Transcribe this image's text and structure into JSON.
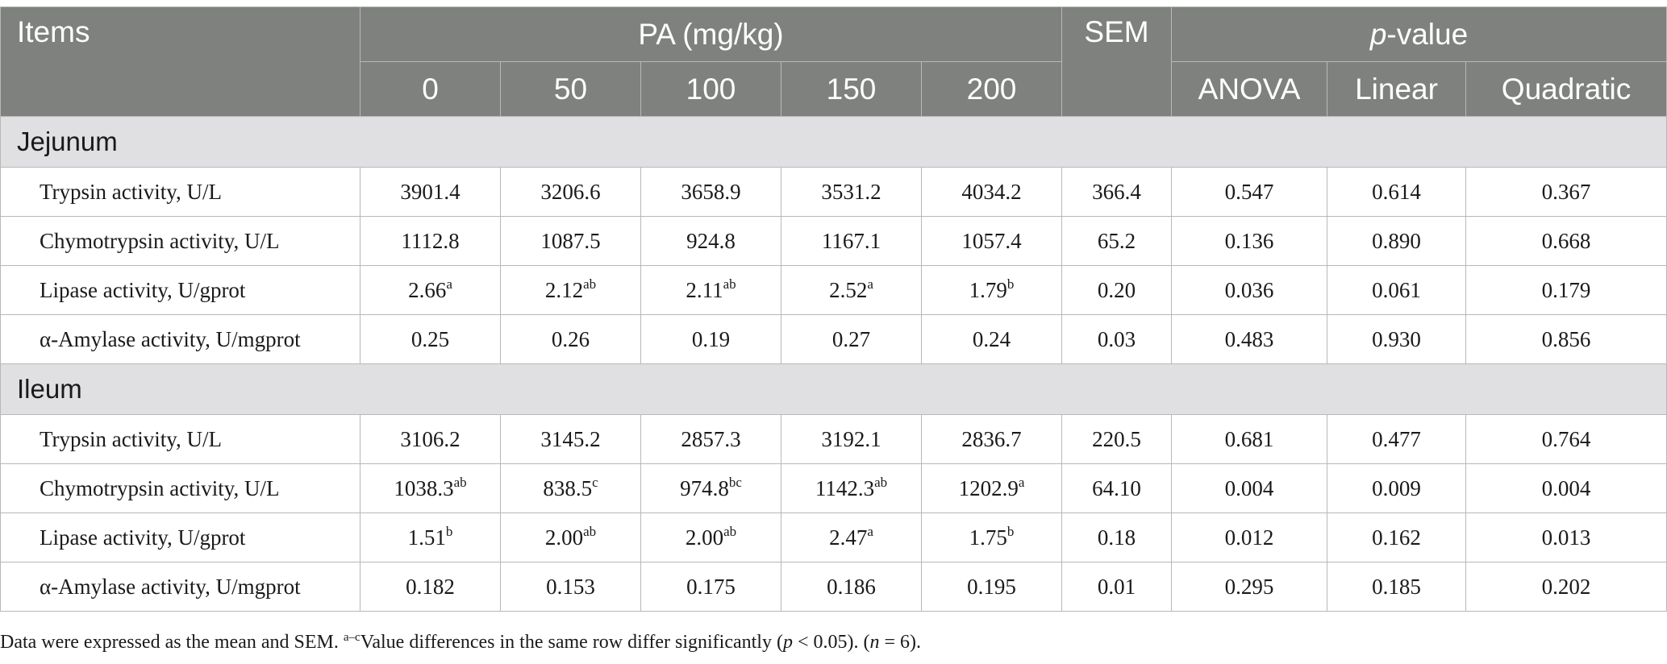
{
  "header": {
    "items": "Items",
    "pa": "PA (mg/kg)",
    "sem": "SEM",
    "p_italic": "p",
    "p_rest": "-value",
    "doses": [
      "0",
      "50",
      "100",
      "150",
      "200"
    ],
    "tests": [
      "ANOVA",
      "Linear",
      "Quadratic"
    ]
  },
  "sections": [
    {
      "name": "Jejunum",
      "rows": [
        {
          "label": "Trypsin activity, U/L",
          "values": [
            {
              "v": "3901.4",
              "s": ""
            },
            {
              "v": "3206.6",
              "s": ""
            },
            {
              "v": "3658.9",
              "s": ""
            },
            {
              "v": "3531.2",
              "s": ""
            },
            {
              "v": "4034.2",
              "s": ""
            }
          ],
          "sem": "366.4",
          "p": [
            "0.547",
            "0.614",
            "0.367"
          ]
        },
        {
          "label": "Chymotrypsin activity, U/L",
          "values": [
            {
              "v": "1112.8",
              "s": ""
            },
            {
              "v": "1087.5",
              "s": ""
            },
            {
              "v": "924.8",
              "s": ""
            },
            {
              "v": "1167.1",
              "s": ""
            },
            {
              "v": "1057.4",
              "s": ""
            }
          ],
          "sem": "65.2",
          "p": [
            "0.136",
            "0.890",
            "0.668"
          ]
        },
        {
          "label": "Lipase activity, U/gprot",
          "values": [
            {
              "v": "2.66",
              "s": "a"
            },
            {
              "v": "2.12",
              "s": "ab"
            },
            {
              "v": "2.11",
              "s": "ab"
            },
            {
              "v": "2.52",
              "s": "a"
            },
            {
              "v": "1.79",
              "s": "b"
            }
          ],
          "sem": "0.20",
          "p": [
            "0.036",
            "0.061",
            "0.179"
          ]
        },
        {
          "label": "α-Amylase activity, U/mgprot",
          "values": [
            {
              "v": "0.25",
              "s": ""
            },
            {
              "v": "0.26",
              "s": ""
            },
            {
              "v": "0.19",
              "s": ""
            },
            {
              "v": "0.27",
              "s": ""
            },
            {
              "v": "0.24",
              "s": ""
            }
          ],
          "sem": "0.03",
          "p": [
            "0.483",
            "0.930",
            "0.856"
          ]
        }
      ]
    },
    {
      "name": "Ileum",
      "rows": [
        {
          "label": "Trypsin activity, U/L",
          "values": [
            {
              "v": "3106.2",
              "s": ""
            },
            {
              "v": "3145.2",
              "s": ""
            },
            {
              "v": "2857.3",
              "s": ""
            },
            {
              "v": "3192.1",
              "s": ""
            },
            {
              "v": "2836.7",
              "s": ""
            }
          ],
          "sem": "220.5",
          "p": [
            "0.681",
            "0.477",
            "0.764"
          ]
        },
        {
          "label": "Chymotrypsin activity, U/L",
          "values": [
            {
              "v": "1038.3",
              "s": "ab"
            },
            {
              "v": "838.5",
              "s": "c"
            },
            {
              "v": "974.8",
              "s": "bc"
            },
            {
              "v": "1142.3",
              "s": "ab"
            },
            {
              "v": "1202.9",
              "s": "a"
            }
          ],
          "sem": "64.10",
          "p": [
            "0.004",
            "0.009",
            "0.004"
          ]
        },
        {
          "label": "Lipase activity, U/gprot",
          "values": [
            {
              "v": "1.51",
              "s": "b"
            },
            {
              "v": "2.00",
              "s": "ab"
            },
            {
              "v": "2.00",
              "s": "ab"
            },
            {
              "v": "2.47",
              "s": "a"
            },
            {
              "v": "1.75",
              "s": "b"
            }
          ],
          "sem": "0.18",
          "p": [
            "0.012",
            "0.162",
            "0.013"
          ]
        },
        {
          "label": "α-Amylase activity, U/mgprot",
          "values": [
            {
              "v": "0.182",
              "s": ""
            },
            {
              "v": "0.153",
              "s": ""
            },
            {
              "v": "0.175",
              "s": ""
            },
            {
              "v": "0.186",
              "s": ""
            },
            {
              "v": "0.195",
              "s": ""
            }
          ],
          "sem": "0.01",
          "p": [
            "0.295",
            "0.185",
            "0.202"
          ]
        }
      ]
    }
  ],
  "footnote": {
    "part1": "Data were expressed as the mean and SEM. ",
    "sup": "a–c",
    "part2": "Value differences in the same row differ significantly (",
    "p": "p",
    "part3": " < 0.05). (",
    "n": "n",
    "part4": " = 6)."
  },
  "colors": {
    "header_bg": "#7f817f",
    "section_bg": "#e0dfe2",
    "border": "#b8b8b8"
  }
}
